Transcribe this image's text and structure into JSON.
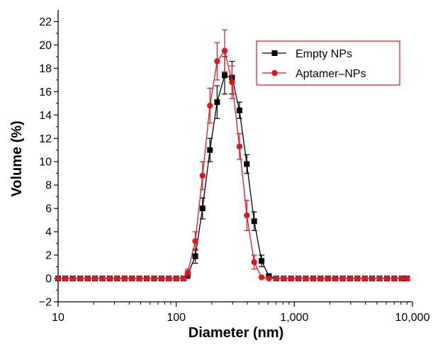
{
  "chart_data": {
    "type": "line",
    "title": "",
    "xlabel": "Diameter (nm)",
    "ylabel": "Volume (%)",
    "xscale": "log",
    "xlim": [
      10,
      10000
    ],
    "ylim": [
      -2,
      23
    ],
    "x_ticks": [
      10,
      100,
      1000,
      10000
    ],
    "x_tick_labels": [
      "10",
      "100",
      "1,000",
      "10,000"
    ],
    "y_ticks": [
      -2,
      0,
      2,
      4,
      6,
      8,
      10,
      12,
      14,
      16,
      18,
      20,
      22
    ],
    "y_tick_labels": [
      "−2",
      "0",
      "2",
      "4",
      "6",
      "8",
      "10",
      "12",
      "14",
      "16",
      "18",
      "20",
      "22"
    ],
    "grid": false,
    "legend_position": "top-right",
    "series": [
      {
        "name": "Empty NPs",
        "color": "#000000",
        "marker": "square",
        "x": [
          10,
          11.5,
          13.3,
          15.4,
          17.8,
          20.5,
          23.7,
          27.4,
          31.6,
          36.5,
          42.2,
          48.7,
          56.2,
          65,
          75,
          86.6,
          100,
          115,
          125,
          145,
          167,
          193,
          222,
          257,
          297,
          343,
          396,
          457,
          528,
          609,
          703,
          812,
          938,
          1083,
          1250,
          1444,
          1667,
          1925,
          2222,
          2566,
          2963,
          3421,
          3950,
          4561,
          5266,
          6081,
          7021,
          8108,
          9000
        ],
        "y": [
          0,
          0,
          0,
          0,
          0,
          0,
          0,
          0,
          0,
          0,
          0,
          0,
          0,
          0,
          0,
          0,
          0,
          0,
          0.3,
          1.9,
          6.0,
          11.0,
          15.1,
          17.4,
          17.2,
          14.4,
          9.8,
          4.9,
          1.5,
          0.2,
          0,
          0,
          0,
          0,
          0,
          0,
          0,
          0,
          0,
          0,
          0,
          0,
          0,
          0,
          0,
          0,
          0,
          0,
          0
        ],
        "err": [
          0,
          0,
          0,
          0,
          0,
          0,
          0,
          0,
          0,
          0,
          0,
          0,
          0,
          0,
          0,
          0,
          0,
          0,
          0.3,
          0.6,
          0.9,
          1.0,
          1.4,
          1.6,
          1.4,
          0.7,
          0.8,
          0.8,
          0.5,
          0.2,
          0,
          0,
          0,
          0,
          0,
          0,
          0,
          0,
          0,
          0,
          0,
          0,
          0,
          0,
          0,
          0,
          0,
          0,
          0
        ]
      },
      {
        "name": "Aptamer–NPs",
        "color": "#e8141c",
        "marker": "circle",
        "x": [
          10,
          11.5,
          13.3,
          15.4,
          17.8,
          20.5,
          23.7,
          27.4,
          31.6,
          36.5,
          42.2,
          48.7,
          56.2,
          65,
          75,
          86.6,
          100,
          115,
          125,
          145,
          167,
          193,
          222,
          257,
          297,
          343,
          396,
          457,
          528,
          609,
          703,
          812,
          938,
          1083,
          1250,
          1444,
          1667,
          1925,
          2222,
          2566,
          2963,
          3421,
          3950,
          4561,
          5266,
          6081,
          7021,
          8108,
          9000
        ],
        "y": [
          0,
          0,
          0,
          0,
          0,
          0,
          0,
          0,
          0,
          0,
          0,
          0,
          0,
          0,
          0,
          0,
          0,
          0,
          0.5,
          3.2,
          8.8,
          14.8,
          18.6,
          19.5,
          16.8,
          11.3,
          5.4,
          1.4,
          0.1,
          0,
          0,
          0,
          0,
          0,
          0,
          0,
          0,
          0,
          0,
          0,
          0,
          0,
          0,
          0,
          0,
          0,
          0,
          0,
          0
        ],
        "err": [
          0,
          0,
          0,
          0,
          0,
          0,
          0,
          0,
          0,
          0,
          0,
          0,
          0,
          0,
          0,
          0,
          0,
          0,
          0.3,
          0.8,
          1.2,
          1.5,
          1.6,
          1.8,
          1.4,
          1.1,
          1.3,
          0.6,
          0.1,
          0,
          0,
          0,
          0,
          0,
          0,
          0,
          0,
          0,
          0,
          0,
          0,
          0,
          0,
          0,
          0,
          0,
          0,
          0,
          0
        ]
      }
    ]
  }
}
